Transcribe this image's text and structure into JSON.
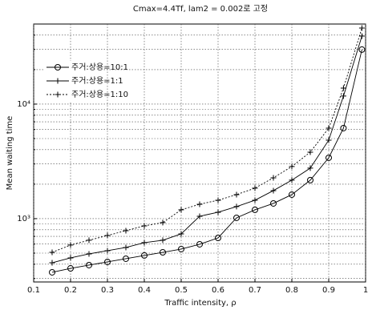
{
  "chart_data": {
    "type": "line",
    "title": "Cmax=4.4Tf, lam2 = 0.002로 고정",
    "xlabel": "Traffic intensity, ρ",
    "ylabel": "Mean waiting time",
    "yscale": "log",
    "grid": true,
    "legend": "upper left",
    "xlim": [
      0.1,
      1
    ],
    "xticks": [
      {
        "value": 0.1,
        "label": "0.1"
      },
      {
        "value": 0.2,
        "label": "0.2"
      },
      {
        "value": 0.3,
        "label": "0.3"
      },
      {
        "value": 0.4,
        "label": "0.4"
      },
      {
        "value": 0.5,
        "label": "0.5"
      },
      {
        "value": 0.6,
        "label": "0.6"
      },
      {
        "value": 0.7,
        "label": "0.7"
      },
      {
        "value": 0.8,
        "label": "0.8"
      },
      {
        "value": 0.9,
        "label": "0.9"
      },
      1
    ],
    "ylim": [
      280,
      50000
    ],
    "yticks": [
      {
        "value": 1000,
        "label": "10³"
      },
      {
        "value": 10000,
        "label": "10⁴"
      }
    ],
    "yminorticks": [
      300,
      400,
      500,
      600,
      700,
      800,
      900,
      2000,
      3000,
      4000,
      5000,
      6000,
      7000,
      8000,
      9000,
      20000,
      30000,
      40000
    ],
    "x": [
      0.15,
      0.2,
      0.25,
      0.3,
      0.35,
      0.4,
      0.45,
      0.5,
      0.55,
      0.6,
      0.65,
      0.7,
      0.75,
      0.8,
      0.85,
      0.9,
      0.94,
      0.99
    ],
    "series": [
      {
        "name": "주거:상용=10:1",
        "color": "#000000",
        "marker": "o",
        "linestyle": "solid",
        "values": [
          340,
          368,
          393,
          419,
          447,
          477,
          508,
          542,
          597,
          679,
          1016,
          1194,
          1358,
          1621,
          2168,
          3398,
          6166,
          29900
        ]
      },
      {
        "name": "주거:상용=1:1",
        "color": "#000000",
        "marker": "+",
        "linestyle": "solid",
        "values": [
          412,
          454,
          492,
          525,
          560,
          617,
          648,
          736,
          1049,
          1137,
          1274,
          1448,
          1757,
          2168,
          2759,
          4843,
          11750,
          39300
        ]
      },
      {
        "name": "주거:상용=1:10",
        "color": "#000000",
        "marker": "+",
        "linestyle": "dotted",
        "values": [
          508,
          588,
          648,
          713,
          785,
          865,
          923,
          1194,
          1336,
          1448,
          1621,
          1845,
          2273,
          2851,
          3806,
          6166,
          13800,
          46100
        ]
      }
    ]
  }
}
